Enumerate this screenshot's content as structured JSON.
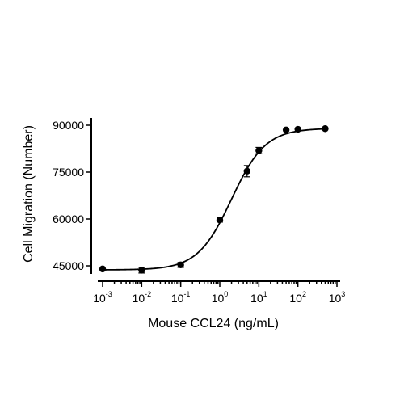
{
  "chart_data": {
    "type": "scatter",
    "xlabel": "Mouse CCL24 (ng/mL)",
    "ylabel": "Cell Migration (Number)",
    "x_scale": "log",
    "xlim": [
      0.001,
      1000
    ],
    "ylim": [
      42000,
      91000
    ],
    "x_ticks": [
      {
        "base": "10",
        "exp": "-3",
        "value": 0.001
      },
      {
        "base": "10",
        "exp": "-2",
        "value": 0.01
      },
      {
        "base": "10",
        "exp": "-1",
        "value": 0.1
      },
      {
        "base": "10",
        "exp": "0",
        "value": 1
      },
      {
        "base": "10",
        "exp": "1",
        "value": 10
      },
      {
        "base": "10",
        "exp": "2",
        "value": 100
      },
      {
        "base": "10",
        "exp": "3",
        "value": 1000
      }
    ],
    "y_ticks": [
      {
        "label": "45000",
        "value": 45000
      },
      {
        "label": "60000",
        "value": 60000
      },
      {
        "label": "75000",
        "value": 75000
      },
      {
        "label": "90000",
        "value": 90000
      }
    ],
    "grid": false,
    "points": [
      {
        "x": 0.001,
        "y": 44000,
        "err": 0
      },
      {
        "x": 0.01,
        "y": 43600,
        "err": 900
      },
      {
        "x": 0.1,
        "y": 45300,
        "err": 800
      },
      {
        "x": 1,
        "y": 59700,
        "err": 700
      },
      {
        "x": 5,
        "y": 75300,
        "err": 1800
      },
      {
        "x": 10,
        "y": 81900,
        "err": 1000
      },
      {
        "x": 50,
        "y": 88500,
        "err": 0
      },
      {
        "x": 100,
        "y": 88700,
        "err": 0
      },
      {
        "x": 500,
        "y": 88900,
        "err": 0
      }
    ],
    "fit": {
      "model": "4PL",
      "bottom": 43700,
      "top": 89000,
      "ec50": 2.0,
      "hill": 1.0
    },
    "colors": {
      "marker": "#000000",
      "curve": "#000000",
      "axis": "#000000"
    }
  }
}
